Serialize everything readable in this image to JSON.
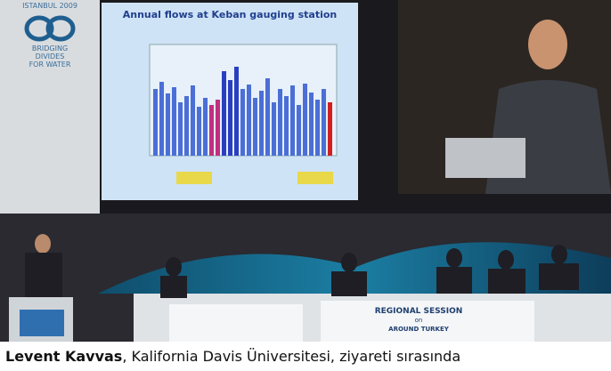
{
  "photo": {
    "banner": {
      "event": "ISTANBUL 2009",
      "slogan": [
        "BRIDGING",
        "DIVIDES",
        "FOR WATER"
      ]
    },
    "slide": {
      "title": "Annual flows at Keban gauging station"
    },
    "table_sign": {
      "line1": "REGIONAL SESSION",
      "line2": "on",
      "line3": "AROUND TURKEY"
    }
  },
  "caption": {
    "name": "Levent Kavvas",
    "text": ", Kalifornia Davis Üniversitesi, ziyareti sırasında"
  }
}
